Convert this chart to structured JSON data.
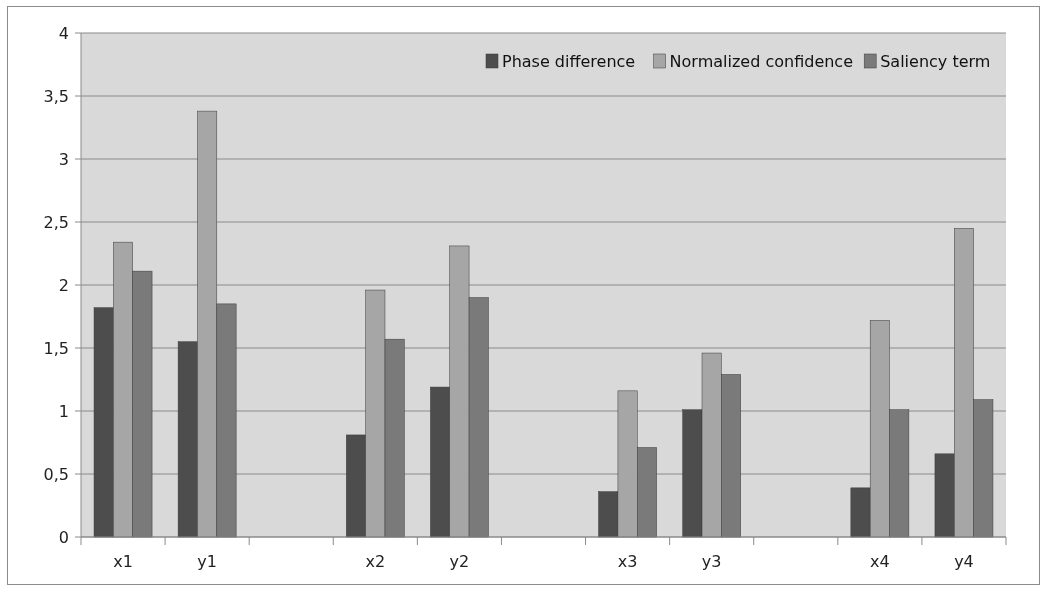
{
  "chart_data": {
    "type": "bar",
    "categories": [
      "x1",
      "y1",
      null,
      "x2",
      "y2",
      null,
      "x3",
      "y3",
      null,
      "x4",
      "y4"
    ],
    "series": [
      {
        "name": "Phase difference",
        "color": "#4d4d4d",
        "values": [
          1.82,
          1.55,
          null,
          0.81,
          1.19,
          null,
          0.36,
          1.01,
          null,
          0.39,
          0.66
        ]
      },
      {
        "name": "Normalized confidence",
        "color": "#a6a6a6",
        "values": [
          2.34,
          3.38,
          null,
          1.96,
          2.31,
          null,
          1.16,
          1.46,
          null,
          1.72,
          2.45
        ]
      },
      {
        "name": "Saliency term",
        "color": "#7a7a7a",
        "values": [
          2.11,
          1.85,
          null,
          1.57,
          1.9,
          null,
          0.71,
          1.29,
          null,
          1.01,
          1.09
        ]
      }
    ],
    "ylim": [
      0,
      4
    ],
    "yticks": [
      0,
      {
        "value": 0.5,
        "label": "0,5"
      },
      1,
      {
        "value": 1.5,
        "label": "1,5"
      },
      2,
      {
        "value": 2.5,
        "label": "2,5"
      },
      3,
      {
        "value": 3.5,
        "label": "3,5"
      },
      4
    ],
    "grid": "y",
    "legend": "top right"
  }
}
